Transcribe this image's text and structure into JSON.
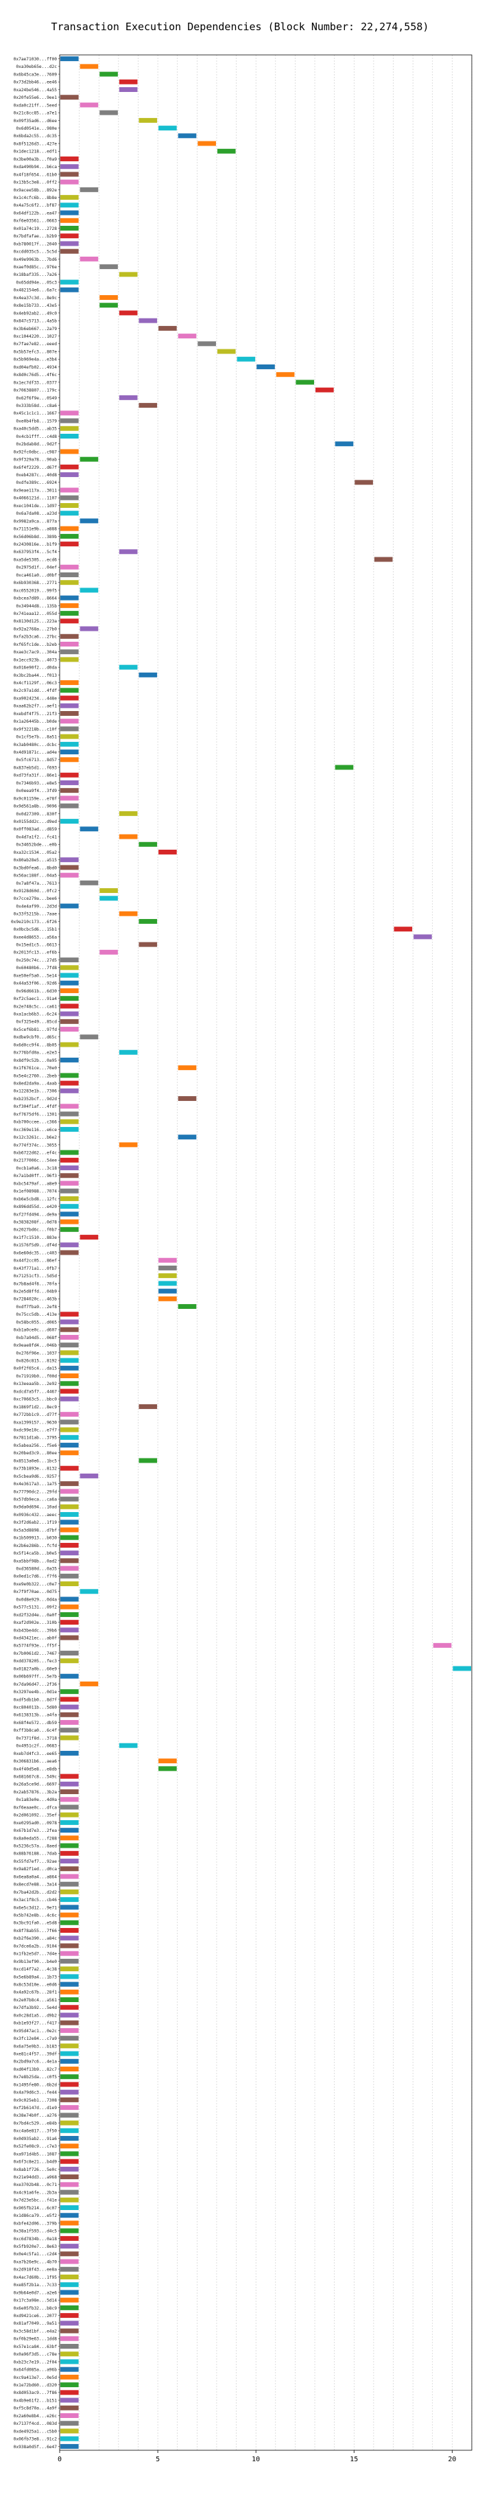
{
  "page": {
    "title": "Transaction Execution Dependencies (Block Number: 22,274,558)"
  },
  "chart_data": {
    "type": "bar",
    "orientation": "horizontal",
    "title": "Transaction Execution Dependencies (Block Number: 22,274,558)",
    "xlabel": "",
    "ylabel": "",
    "xlim": [
      0,
      21
    ],
    "xticks": [
      0,
      5,
      10,
      15,
      20
    ],
    "grid": true,
    "legend": "none",
    "palette": [
      "#1f77b4",
      "#ff7f0e",
      "#2ca02c",
      "#d62728",
      "#9467bd",
      "#8c564b",
      "#e377c2",
      "#7f7f7f",
      "#bcbd22",
      "#17becf"
    ],
    "rows": [
      [
        "0x7ae71030...ff00",
        0
      ],
      [
        "0xa30eb65e...d2c",
        1
      ],
      [
        "0x6b45ca3e...7609",
        2
      ],
      [
        "0x73d2bb46...ee46",
        3
      ],
      [
        "0xa24be546...4a55",
        3
      ],
      [
        "0x20fe55e6...9ee1",
        0
      ],
      [
        "0xda0c21ff...5eed",
        1
      ],
      [
        "0x21c8cc85...a7e1",
        2
      ],
      [
        "0x09f35ad6...d6ee",
        4
      ],
      [
        "0x6d0541e...980e",
        5
      ],
      [
        "0x6bda2c55...dc35",
        6
      ],
      [
        "0x8f5126d3...427e",
        7
      ],
      [
        "0x1dec1218...edf1",
        8
      ],
      [
        "0x3be00a3b...f0a9",
        0
      ],
      [
        "0xda490b94...b6ca",
        0
      ],
      [
        "0x4f18f654...61b0",
        0
      ],
      [
        "0x13b5c3e8...0ff2",
        0
      ],
      [
        "0x9acee58b...892e",
        1
      ],
      [
        "0x1c4cfc6b...8b8e",
        0
      ],
      [
        "0x4a75c6f2...bf87",
        0
      ],
      [
        "0x64df122b...ea47",
        0
      ],
      [
        "0xf6e03561...0663",
        0
      ],
      [
        "0x01a74c19...2728",
        0
      ],
      [
        "0x7bdfafae...b2b9",
        0
      ],
      [
        "0xb780017f...2040",
        0
      ],
      [
        "0xcdd035c5...5c5d",
        0
      ],
      [
        "0x49e9963b...7bd6",
        1
      ],
      [
        "0xaef0d85c...976e",
        2
      ],
      [
        "0x18baf335...7a26",
        3
      ],
      [
        "0x65dd94e...05c3",
        0
      ],
      [
        "0x482154e6...6a7c",
        0
      ],
      [
        "0x4ea37c3d...8e9c",
        2
      ],
      [
        "0x8e15b733...43e5",
        2
      ],
      [
        "0x4eb92ab2...49c0",
        3
      ],
      [
        "0x847c5713...4a5b",
        4
      ],
      [
        "0x3b6eb667...2a79",
        5
      ],
      [
        "0xc1044220...1027",
        6
      ],
      [
        "0x7fae7e82...eeed",
        7
      ],
      [
        "0x5b57efc3...807e",
        8
      ],
      [
        "0x5b969e4a...e3b4",
        9
      ],
      [
        "0xd04efb02...4934",
        10
      ],
      [
        "0x8d0c76d5...4f6c",
        11
      ],
      [
        "0x1ec7df33...0377",
        12
      ],
      [
        "0x70638807...179c",
        13
      ],
      [
        "0x62f6f9e...0549",
        3
      ],
      [
        "0x333b58d...c8a6",
        4
      ],
      [
        "0x45c1c1c1...1667",
        0
      ],
      [
        "0xe0b4fb8...1579",
        0
      ],
      [
        "0xa40c5dd5...ab35",
        0
      ],
      [
        "0x4cb1fff...c4d8",
        0
      ],
      [
        "0x2bdab8d...9d2f",
        14
      ],
      [
        "0x92fc0dbc...c987",
        0
      ],
      [
        "0x9f329a78...90ab",
        1
      ],
      [
        "0x6f4f2229...d67f",
        0
      ],
      [
        "0xeb4287c...40d8",
        0
      ],
      [
        "0xdfe389c...6924",
        15
      ],
      [
        "0x9eae117a...3011",
        0
      ],
      [
        "0x4066121d...1107",
        0
      ],
      [
        "0xec1041de...1d97",
        0
      ],
      [
        "0x6a7da08...a23d",
        0
      ],
      [
        "0x9982a9ca...877a",
        1
      ],
      [
        "0x71151e9b...a888",
        0
      ],
      [
        "0x56d06b8d...389b",
        0
      ],
      [
        "0x2430816e...b1f9",
        0
      ],
      [
        "0x637953f4...5cf4",
        3
      ],
      [
        "0xa5de5305...ecd6",
        16
      ],
      [
        "0x2975d1f...04ef",
        0
      ],
      [
        "0xca461a0...d0bf",
        0
      ],
      [
        "0x6b930368...2771",
        0
      ],
      [
        "0xc0552019...99f5",
        1
      ],
      [
        "0xbcea7d89...8664",
        0
      ],
      [
        "0x34944d8...135b",
        0
      ],
      [
        "0x741eaa12...055d",
        0
      ],
      [
        "0x8130d125...223a",
        0
      ],
      [
        "0x92a2768a...27b0",
        1
      ],
      [
        "0xfa2b3ca6...27bc",
        0
      ],
      [
        "0xf65fc1de...b2eb",
        0
      ],
      [
        "0xae3c7ac9...304a",
        0
      ],
      [
        "0x1ecc923b...4073",
        0
      ],
      [
        "0x016e90f2...d0da",
        3
      ],
      [
        "0x3bc2ba44...f013",
        4
      ],
      [
        "0x4cf1129f...06c3",
        0
      ],
      [
        "0x2c97a1dd...4fdf",
        0
      ],
      [
        "0xa9024234...448e",
        0
      ],
      [
        "0xaa62b2f7...aef1",
        0
      ],
      [
        "0xebdf4f75...21f3",
        0
      ],
      [
        "0x1a26445b...b0de",
        0
      ],
      [
        "0x9f32218b...c10f",
        0
      ],
      [
        "0x1cf5e7b...8a51",
        0
      ],
      [
        "0x3ab0480c...dcbc",
        0
      ],
      [
        "0x4d91871c...ad4e",
        0
      ],
      [
        "0x5fc6713...8d57",
        0
      ],
      [
        "0x837eb5d1...f693",
        14
      ],
      [
        "0xd73fa31f...86e1",
        0
      ],
      [
        "0x7346b93...e8e5",
        0
      ],
      [
        "0x0eea9f4...3fd9",
        0
      ],
      [
        "0x9c01159e...e78f",
        0
      ],
      [
        "0x9d561a8b...9096",
        0
      ],
      [
        "0x0d27309...830f",
        3
      ],
      [
        "0x0155dd2c...d9ed",
        0
      ],
      [
        "0x0ff083ad...d859",
        1
      ],
      [
        "0x4d7a1f2...fc41",
        3
      ],
      [
        "0x34652bde...e0b",
        4
      ],
      [
        "0xa32c1534...05a2",
        5
      ],
      [
        "0x80ab28e5...a515",
        0
      ],
      [
        "0x3bd0fea6...8bd0",
        0
      ],
      [
        "0x56ac188f...04a5",
        0
      ],
      [
        "0x7a8f47a...7613",
        1
      ],
      [
        "0x9128d60d...0fc2",
        2
      ],
      [
        "0x7cce279a...bee6",
        2
      ],
      [
        "0x4e4af99...2d3d",
        0
      ],
      [
        "0x33f5215b...7aae",
        3
      ],
      [
        "0x9e210c173...6f26",
        4
      ],
      [
        "0x0bcbc5d6...15b1",
        17
      ],
      [
        "0xee4d8653...a56a",
        18
      ],
      [
        "0x15ed1c5...6613",
        4
      ],
      [
        "0x2013fc13...ef6b",
        2
      ],
      [
        "0x250c74c...27d5",
        0
      ],
      [
        "0x60480b6...7fd8",
        0
      ],
      [
        "0xe50ef5a0...5e14",
        0
      ],
      [
        "0x44a53f06...92d6",
        0
      ],
      [
        "0x96d661b...6d30",
        0
      ],
      [
        "0xf2c5aec1...91a4",
        0
      ],
      [
        "0x2e748c5c...ca61",
        0
      ],
      [
        "0xa1acb6b3...6c24",
        0
      ],
      [
        "0xf325e49...85cd",
        0
      ],
      [
        "0x5cef6b81...97fd",
        0
      ],
      [
        "0xdbe9cbf0...d65c",
        1
      ],
      [
        "0x6d0cc9f4...8b05",
        0
      ],
      [
        "0x776bfd0a...e2e3",
        3
      ],
      [
        "0x8df9c52b...0a95",
        0
      ],
      [
        "0x1f6761ce...70e0",
        6
      ],
      [
        "0x5e4c2760...2beb",
        0
      ],
      [
        "0x8ed2da9a...4aab",
        0
      ],
      [
        "0x12283e1b...7306",
        0
      ],
      [
        "0xb2352bcf...9d2d",
        6
      ],
      [
        "0xf304f1af...4fdf",
        0
      ],
      [
        "0xf7675df6...1301",
        0
      ],
      [
        "0xb700ccee...c366",
        0
      ],
      [
        "0xc369e116...e6ce",
        0
      ],
      [
        "0x12c3261c...b6e2",
        6
      ],
      [
        "0x774f374c...3055",
        3
      ],
      [
        "0xb6722d62...ef4c",
        0
      ],
      [
        "0x2177006c...54ee",
        0
      ],
      [
        "0xcb1a0a6...3c18",
        0
      ],
      [
        "0x7a1bd0ff...96f3",
        0
      ],
      [
        "0xbc5479af...a8e9",
        0
      ],
      [
        "0x1ef08988...7074",
        0
      ],
      [
        "0xb6e5cbd8...12fc",
        0
      ],
      [
        "0x896dd55d...e420",
        0
      ],
      [
        "0xf27fd494...de9a",
        0
      ],
      [
        "0x3838208f...0d78",
        0
      ],
      [
        "0x2027bd6c...f0b7",
        0
      ],
      [
        "0x1f7c1510...883e",
        1
      ],
      [
        "0x1576f5d9...df4d",
        0
      ],
      [
        "0x6e60dc35...c403",
        0
      ],
      [
        "0x44f2cc05...86ef",
        5
      ],
      [
        "0x43f771a1...0fb7",
        5
      ],
      [
        "0x71251cf3...5d5d",
        5
      ],
      [
        "0x7b8ad4f8...70fa",
        5
      ],
      [
        "0x2e5d8ffd...04b9",
        5
      ],
      [
        "0x7284020c...463b",
        5
      ],
      [
        "0xdf7fba9...2ef8",
        6
      ],
      [
        "0x75cc5db...413e",
        0
      ],
      [
        "0x58bc055...d065",
        0
      ],
      [
        "0xb1a0ce0c...d607",
        0
      ],
      [
        "0xb7a94d5...068f",
        0
      ],
      [
        "0x9eae8fd4...046b",
        0
      ],
      [
        "0x276f96e...1037",
        0
      ],
      [
        "0x826c815...8192",
        0
      ],
      [
        "0x0f2f65c4...da15",
        0
      ],
      [
        "0x71919b0...f00d",
        0
      ],
      [
        "0x13eeaa5b...2e92",
        0
      ],
      [
        "0xdcd7a5f7...4467",
        0
      ],
      [
        "0xc70663c5...bbc0",
        0
      ],
      [
        "0x1869f1d2...8ec9",
        4
      ],
      [
        "0x772bb1c9...d77f",
        0
      ],
      [
        "0xa1399157...9630",
        0
      ],
      [
        "0xdc99e10c...e7f7",
        0
      ],
      [
        "0x7811d1ab...3795",
        0
      ],
      [
        "0x5abea256...f5e6",
        0
      ],
      [
        "0x20bed3c9...80ee",
        0
      ],
      [
        "0x8513a0e6...1bc5",
        4
      ],
      [
        "0x73b1893e...8132",
        0
      ],
      [
        "0x5cbea9d6...9257",
        1
      ],
      [
        "0x4e3617a3...1a75",
        0
      ],
      [
        "0x77790dc2...29fd",
        0
      ],
      [
        "0x57db9eca...ca6a",
        0
      ],
      [
        "0x9da0d694...10ad",
        0
      ],
      [
        "0x0936c432...aeec",
        0
      ],
      [
        "0x3f2d6ab2...1f19",
        0
      ],
      [
        "0x5a3d8898...d7bf",
        0
      ],
      [
        "0x1b509913...b030",
        0
      ],
      [
        "0x2b6e286b...fcfd",
        0
      ],
      [
        "0x5f14ca5b...b0e5",
        0
      ],
      [
        "0xa5bbf98b...0ad2",
        0
      ],
      [
        "0xd36580d...0a35",
        0
      ],
      [
        "0x0ed1c7d6...f7f6",
        0
      ],
      [
        "0xe9e0b322...c0e7",
        0
      ],
      [
        "0x7f9f70ae...0d75",
        1
      ],
      [
        "0x0d8e929...0d4a",
        0
      ],
      [
        "0x577c5131...09f2",
        0
      ],
      [
        "0xd2f32d4e...0a0f",
        0
      ],
      [
        "0xaf2d902e...310b",
        0
      ],
      [
        "0xb43be4dc...39b6",
        0
      ],
      [
        "0xd43421ec...ab0f",
        0
      ],
      [
        "0x5774f93e...ff5f",
        19
      ],
      [
        "0x7b0061d2...7467",
        0
      ],
      [
        "0xdd378205...fec3",
        0
      ],
      [
        "0x01827a0b...60e9",
        20
      ],
      [
        "0x00b697ff...5e7b",
        0
      ],
      [
        "0x7da96d47...2f36",
        1
      ],
      [
        "0x3297ee4b...0d1e",
        0
      ],
      [
        "0xdf5db1b0...8d7f",
        0
      ],
      [
        "0xc804011b...5d80",
        0
      ],
      [
        "0x6138313b...a4fa",
        0
      ],
      [
        "0x68f4e572...db59",
        0
      ],
      [
        "0xff3b8ca0...6c4f",
        0
      ],
      [
        "0x7371f8d...3718",
        0
      ],
      [
        "0x4951c2f...0683",
        3
      ],
      [
        "0xeb7d4fc3...ee65",
        0
      ],
      [
        "0x306831b6...aea6",
        5
      ],
      [
        "0x4f40d5e8...e8db",
        5
      ],
      [
        "0x681667c8...549c",
        0
      ],
      [
        "0x26a5ce9d...6697",
        0
      ],
      [
        "0x2ab57876...3b2a",
        0
      ],
      [
        "0x1a83e0e...4d0a",
        0
      ],
      [
        "0xf6eaae0c...dfca",
        0
      ],
      [
        "0x2d061092...35ef",
        0
      ],
      [
        "0xe0295ad0...0978",
        0
      ],
      [
        "0x67b1d7e3...2fea",
        0
      ],
      [
        "0x8a0eda55...f288",
        0
      ],
      [
        "0x5236c57a...8aed",
        0
      ],
      [
        "0x88b76188...7dab",
        0
      ],
      [
        "0x55fd7ef7...92ae",
        0
      ],
      [
        "0x9a82f1ed...d0ca",
        0
      ],
      [
        "0x6ea8a0a4...a864",
        0
      ],
      [
        "0x8ecd7e88...3a14",
        0
      ],
      [
        "0x7ba42d2b...d2d2",
        0
      ],
      [
        "0x3ac1f8c5...cb46",
        0
      ],
      [
        "0x6e5c3d12...9e71",
        0
      ],
      [
        "0x5b742e8b...4c6c",
        0
      ],
      [
        "0x3bc91fa0...e5d8",
        0
      ],
      [
        "0x8f78ab55...7f66",
        0
      ],
      [
        "0xb2f6e390...a84c",
        0
      ],
      [
        "0x7dce6a2b...9104",
        0
      ],
      [
        "0x1fb2e5d7...7d4e",
        0
      ],
      [
        "0x9b13ef90...b4e0",
        0
      ],
      [
        "0xcd14f7a2...4c38",
        0
      ],
      [
        "0x5e6b89a4...1b73",
        0
      ],
      [
        "0x8c53d10e...e0d6",
        0
      ],
      [
        "0x4a92c67b...28f1",
        0
      ],
      [
        "0x2e07b8c4...a561",
        0
      ],
      [
        "0x7dfa3b92...5e4d",
        0
      ],
      [
        "0x0c28d1a5...d9b2",
        0
      ],
      [
        "0xb1e93f27...f417",
        0
      ],
      [
        "0x95d47ac1...0e2c",
        0
      ],
      [
        "0x3fc12e84...c7a9",
        0
      ],
      [
        "0x6a75e9b3...b183",
        0
      ],
      [
        "0xe81c4f57...39df",
        0
      ],
      [
        "0x2bd9a7c6...4e1a",
        0
      ],
      [
        "0xd04f13b9...82c7",
        0
      ],
      [
        "0x7e8b25da...c0f5",
        0
      ],
      [
        "0x1495fe80...6b2d",
        0
      ],
      [
        "0x4a79d6c3...fe44",
        0
      ],
      [
        "0x9c025eb1...7308",
        0
      ],
      [
        "0xf2b6147d...d1e9",
        0
      ],
      [
        "0x38e74b0f...a276",
        0
      ],
      [
        "0x7bd4c529...e84b",
        0
      ],
      [
        "0xc4a6e817...3f50",
        0
      ],
      [
        "0x0d935ab2...91a6",
        0
      ],
      [
        "0x52fe08c9...c7e3",
        0
      ],
      [
        "0xa971d4b5...1087",
        0
      ],
      [
        "0x6f3c8e21...b4d9",
        0
      ],
      [
        "0x8ab1f726...5e0c",
        0
      ],
      [
        "0x21e94dd3...a968",
        0
      ],
      [
        "0xe3702b48...0c71",
        0
      ],
      [
        "0x4c91a6fe...2b3a",
        0
      ],
      [
        "0x7d23e5bc...f41e",
        0
      ],
      [
        "0x905fb214...6c07",
        0
      ],
      [
        "0x1d86ca79...e5f2",
        0
      ],
      [
        "0xbfe42d06...379b",
        0
      ],
      [
        "0x38a1f593...d4c5",
        0
      ],
      [
        "0xc6d7834b...0a18",
        0
      ],
      [
        "0x5fb920e7...8e63",
        0
      ],
      [
        "0x0e4c5fa1...c2d4",
        0
      ],
      [
        "0xa7b26e9c...4b70",
        0
      ],
      [
        "0x2d918f43...ee8a",
        0
      ],
      [
        "0x4ac7d60b...1f95",
        0
      ],
      [
        "0xe85f2b1a...7c33",
        0
      ],
      [
        "0x9b64e0d7...a2e6",
        0
      ],
      [
        "0x17c3a98e...5d14",
        0
      ],
      [
        "0x6e05fb32...b8c9",
        0
      ],
      [
        "0xd9421ce6...2077",
        0
      ],
      [
        "0x81af7049...9a51",
        0
      ],
      [
        "0x3c58d1bf...e4a2",
        0
      ],
      [
        "0xf0b29e63...1dd8",
        0
      ],
      [
        "0x57e1ca84...63bf",
        0
      ],
      [
        "0x0a96f3d5...c78e",
        0
      ],
      [
        "0xb23c7e19...2f04",
        0
      ],
      [
        "0x64fd085a...a96b",
        0
      ],
      [
        "0xc9a413e7...0e5d",
        0
      ],
      [
        "0x1e72bd60...d320",
        0
      ],
      [
        "0x8d053ac9...7f86",
        0
      ],
      [
        "0x4b9e61f2...b151",
        0
      ],
      [
        "0xf5c8d70a...4a9f",
        0
      ],
      [
        "0x2a60e8b4...e26c",
        0
      ],
      [
        "0x7137f4cd...083d",
        0
      ],
      [
        "0xde4925a1...c5b0",
        0
      ],
      [
        "0x06fb73e8...91c2",
        0
      ],
      [
        "0x938a0d5f...6e47",
        0
      ]
    ]
  }
}
